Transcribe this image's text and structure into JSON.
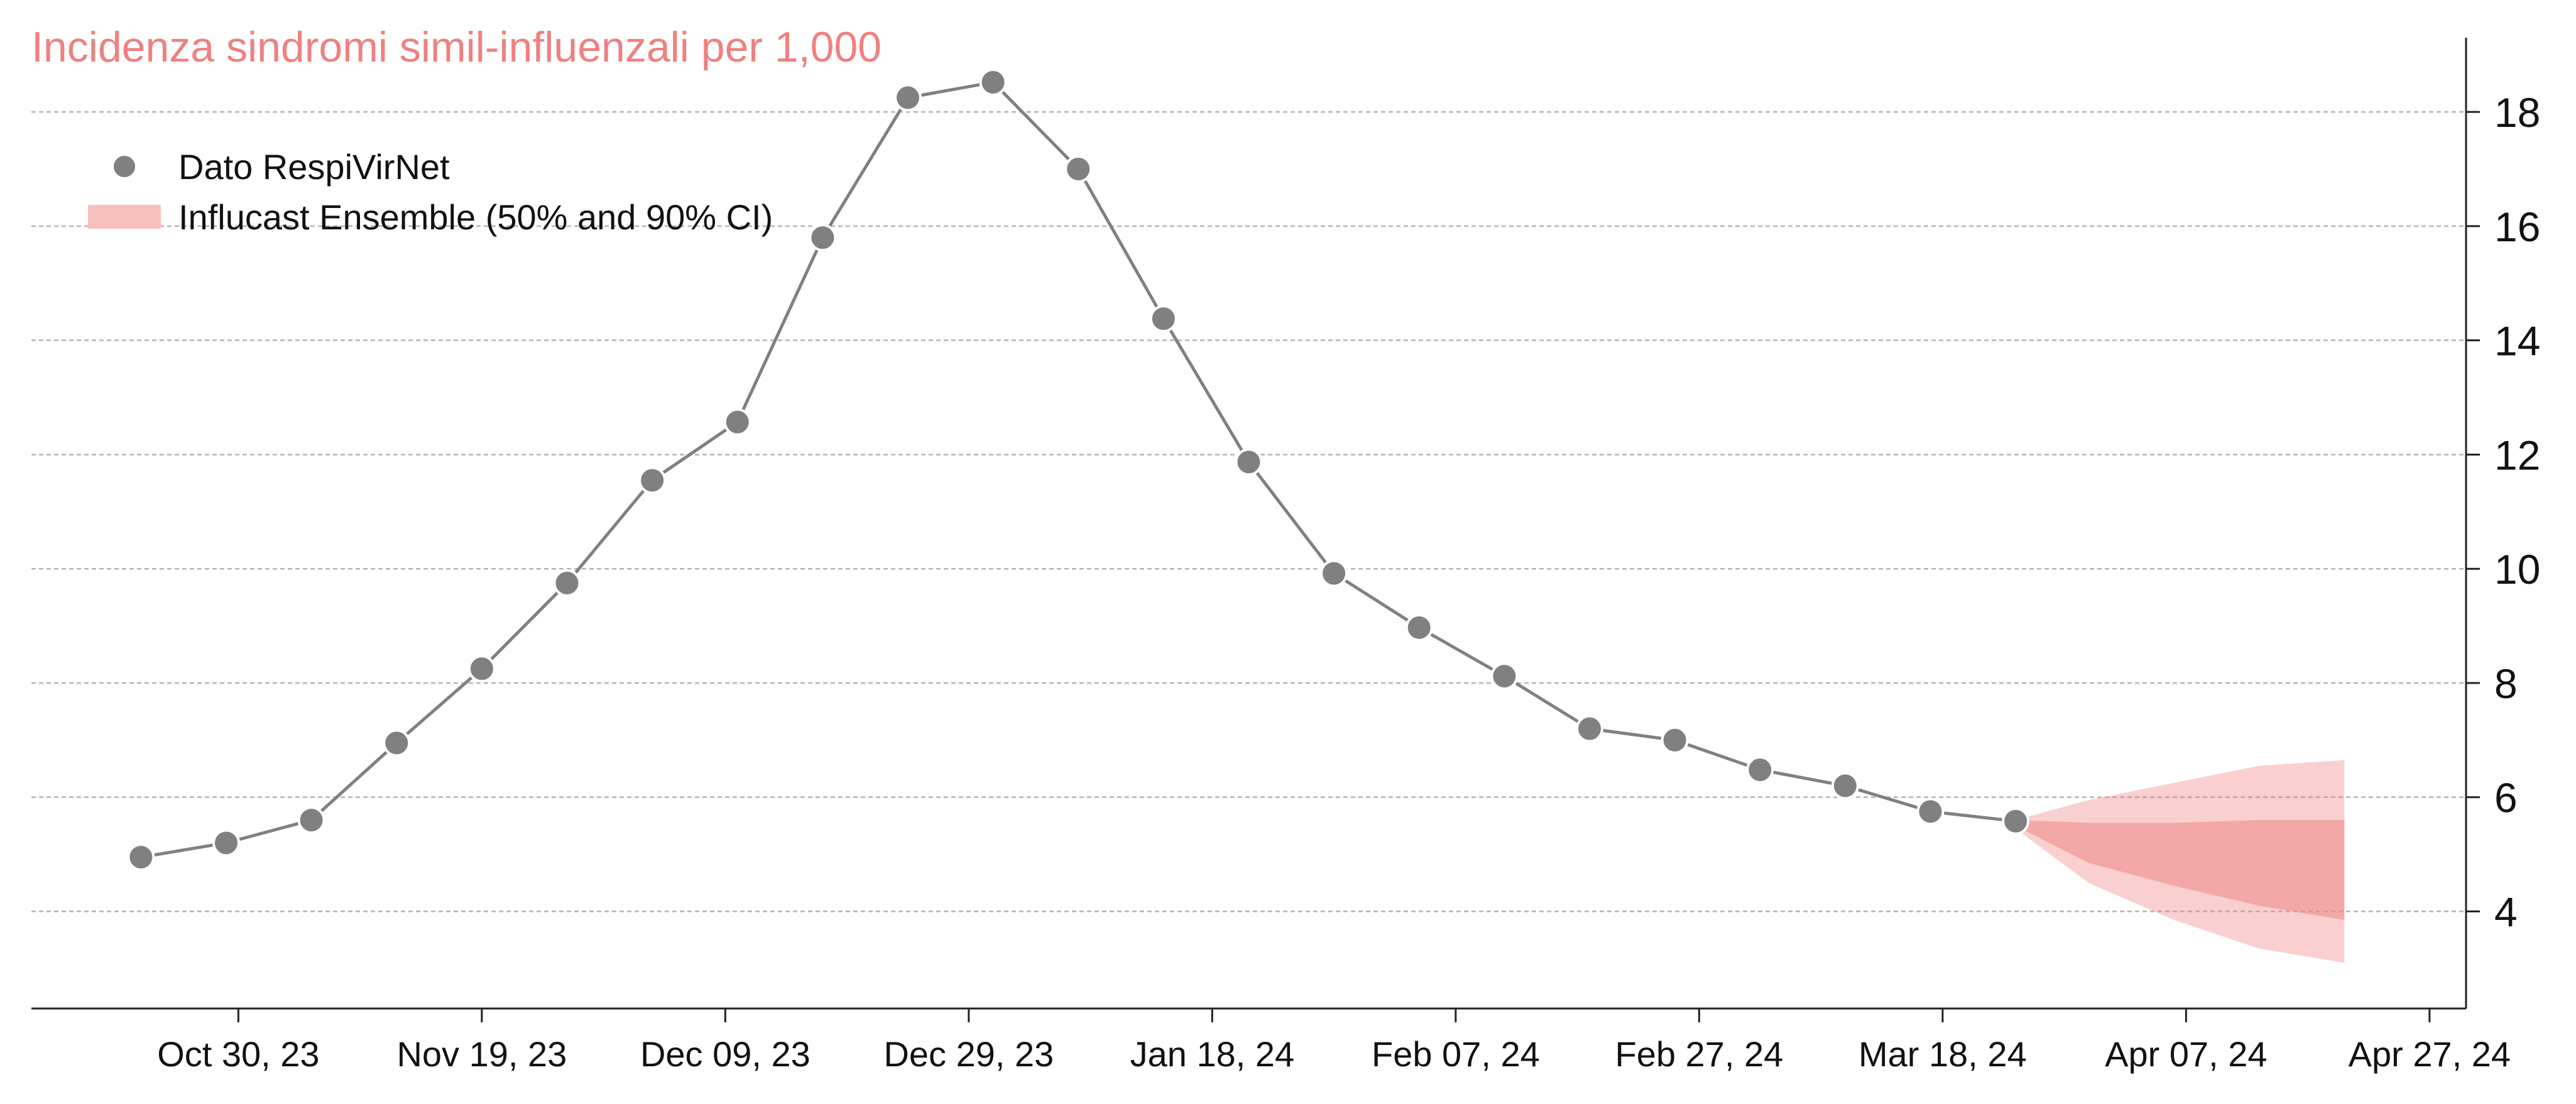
{
  "chart_data": {
    "type": "line",
    "title": "Incidenza sindromi simil-influenzali per 1,000",
    "xlabel": "",
    "ylabel": "",
    "y_axis_position": "right",
    "grid": "horizontal dashed",
    "legend_position": "top-left",
    "x_tick_labels": [
      "Oct 30, 23",
      "Nov 19, 23",
      "Dec 09, 23",
      "Dec 29, 23",
      "Jan 18, 24",
      "Feb 07, 24",
      "Feb 27, 24",
      "Mar 18, 24",
      "Apr 07, 24",
      "Apr 27, 24"
    ],
    "x_tick_dates": [
      "2023-10-30",
      "2023-11-19",
      "2023-12-09",
      "2023-12-29",
      "2024-01-18",
      "2024-02-07",
      "2024-02-27",
      "2024-03-18",
      "2024-04-07",
      "2024-04-27"
    ],
    "xlim": [
      "2023-10-13",
      "2024-04-30"
    ],
    "y_ticks": [
      4,
      6,
      8,
      10,
      12,
      14,
      16,
      18
    ],
    "ylim": [
      2.3,
      19.3
    ],
    "series": [
      {
        "name": "Dato RespiVirNet",
        "kind": "line-with-markers",
        "color": "#808080",
        "x": [
          "2023-10-22",
          "2023-10-29",
          "2023-11-05",
          "2023-11-12",
          "2023-11-19",
          "2023-11-26",
          "2023-12-03",
          "2023-12-10",
          "2023-12-17",
          "2023-12-24",
          "2023-12-31",
          "2024-01-07",
          "2024-01-14",
          "2024-01-21",
          "2024-01-28",
          "2024-02-04",
          "2024-02-11",
          "2024-02-18",
          "2024-02-25",
          "2024-03-03",
          "2024-03-10",
          "2024-03-17",
          "2024-03-24"
        ],
        "y": [
          4.95,
          5.2,
          5.6,
          6.95,
          8.25,
          9.75,
          11.55,
          12.57,
          15.8,
          18.25,
          18.52,
          17.0,
          14.38,
          11.87,
          9.92,
          8.97,
          8.12,
          7.2,
          7.0,
          6.48,
          6.2,
          5.75,
          5.58
        ]
      },
      {
        "name": "Influcast Ensemble (50% and 90% CI)",
        "kind": "band",
        "color": "#F08080",
        "x": [
          "2024-03-24",
          "2024-03-30",
          "2024-04-06",
          "2024-04-13",
          "2024-04-20"
        ],
        "ci90_upper": [
          5.6,
          5.95,
          6.25,
          6.55,
          6.65
        ],
        "ci50_upper": [
          5.6,
          5.55,
          5.55,
          5.6,
          5.6
        ],
        "ci50_lower": [
          5.5,
          4.85,
          4.45,
          4.1,
          3.85
        ],
        "ci90_lower": [
          5.45,
          4.5,
          3.85,
          3.35,
          3.1
        ]
      }
    ]
  }
}
